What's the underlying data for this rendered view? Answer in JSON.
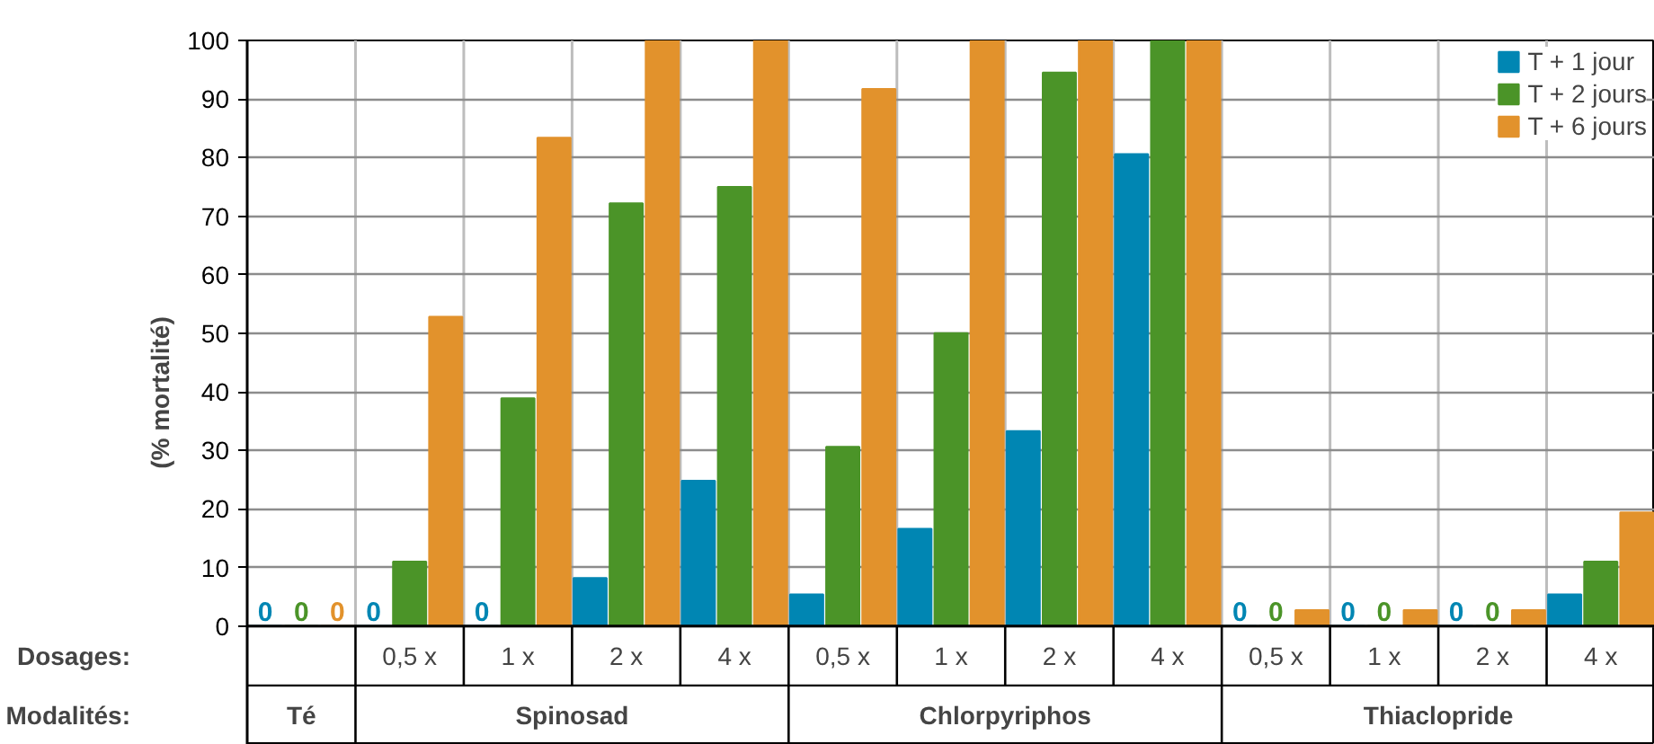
{
  "chart_data": {
    "type": "bar",
    "ylabel": "(% mortalité)",
    "categories": [
      null,
      "0,5 x",
      "1 x",
      "2 x",
      "4 x",
      "0,5 x",
      "1 x",
      "2 x",
      "4 x",
      "0,5 x",
      "1 x",
      "2 x",
      "4 x"
    ],
    "series": [
      {
        "name": "T + 1 jour",
        "color": "#0086b3",
        "values": [
          0,
          0,
          0,
          8.2,
          24.8,
          5.4,
          16.6,
          33.3,
          80.6,
          0,
          0,
          0,
          5.4
        ],
        "value_labels": [
          "0",
          "0",
          "0",
          null,
          null,
          null,
          null,
          null,
          null,
          "0",
          "0",
          "0",
          null
        ]
      },
      {
        "name": "T + 2 jours",
        "color": "#4b9428",
        "values": [
          0,
          11,
          38.9,
          72.2,
          75,
          30.6,
          50,
          94.5,
          100,
          0,
          0,
          0,
          11
        ],
        "value_labels": [
          "0",
          null,
          null,
          null,
          null,
          null,
          null,
          null,
          null,
          "0",
          "0",
          "0",
          null
        ]
      },
      {
        "name": "T + 6 jours",
        "color": "#e2922c",
        "values": [
          0,
          52.8,
          83.4,
          100,
          100,
          91.7,
          100,
          100,
          100,
          2.7,
          2.7,
          2.7,
          19.4
        ],
        "value_labels": [
          "0",
          null,
          null,
          null,
          null,
          null,
          null,
          null,
          null,
          null,
          null,
          null,
          null
        ]
      }
    ],
    "ylim": [
      0,
      100
    ],
    "yticks": [
      0,
      10,
      20,
      30,
      40,
      50,
      60,
      70,
      80,
      90,
      100
    ],
    "grid": "y",
    "legend": "top right",
    "annotations": [
      "Dosages:",
      "Modalités:",
      "Té",
      "Spinosad",
      "Chlorpyriphos",
      "Thiaclopride"
    ]
  }
}
